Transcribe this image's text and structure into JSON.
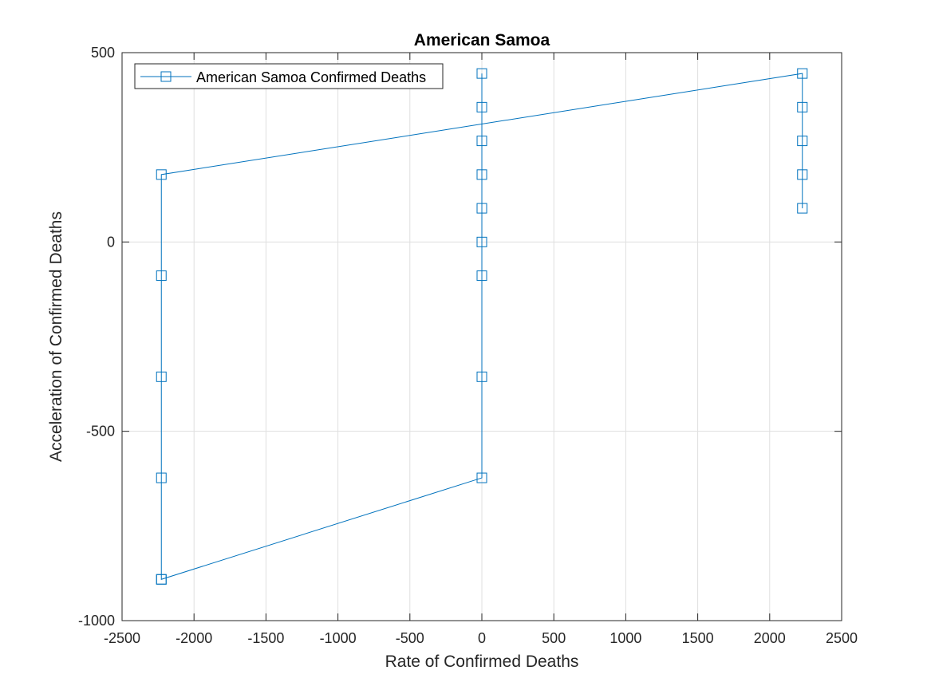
{
  "chart_data": {
    "type": "line",
    "title": "American Samoa",
    "xlabel": "Rate of Confirmed Deaths",
    "ylabel": "Acceleration of Confirmed Deaths",
    "xlim": [
      -2500,
      2500
    ],
    "ylim": [
      -1000,
      500
    ],
    "xticks": [
      -2500,
      -2000,
      -1500,
      -1000,
      -500,
      0,
      500,
      1000,
      1500,
      2000,
      2500
    ],
    "yticks": [
      -1000,
      -500,
      0,
      500
    ],
    "grid": true,
    "legend_location": "top-left",
    "series": [
      {
        "name": "American Samoa Confirmed Deaths",
        "color": "#0072BD",
        "marker": "square",
        "x": [
          2227,
          2227,
          2227,
          2227,
          2227,
          -2227,
          -2227,
          -2227,
          -2227,
          -2227,
          -2227,
          0,
          0,
          0,
          0,
          0,
          0,
          0,
          0,
          0
        ],
        "y": [
          89,
          178,
          267,
          356,
          445,
          178,
          -89,
          -356,
          -623,
          -891,
          -891,
          -623,
          -356,
          -89,
          0,
          89,
          178,
          267,
          356,
          445
        ]
      }
    ]
  }
}
